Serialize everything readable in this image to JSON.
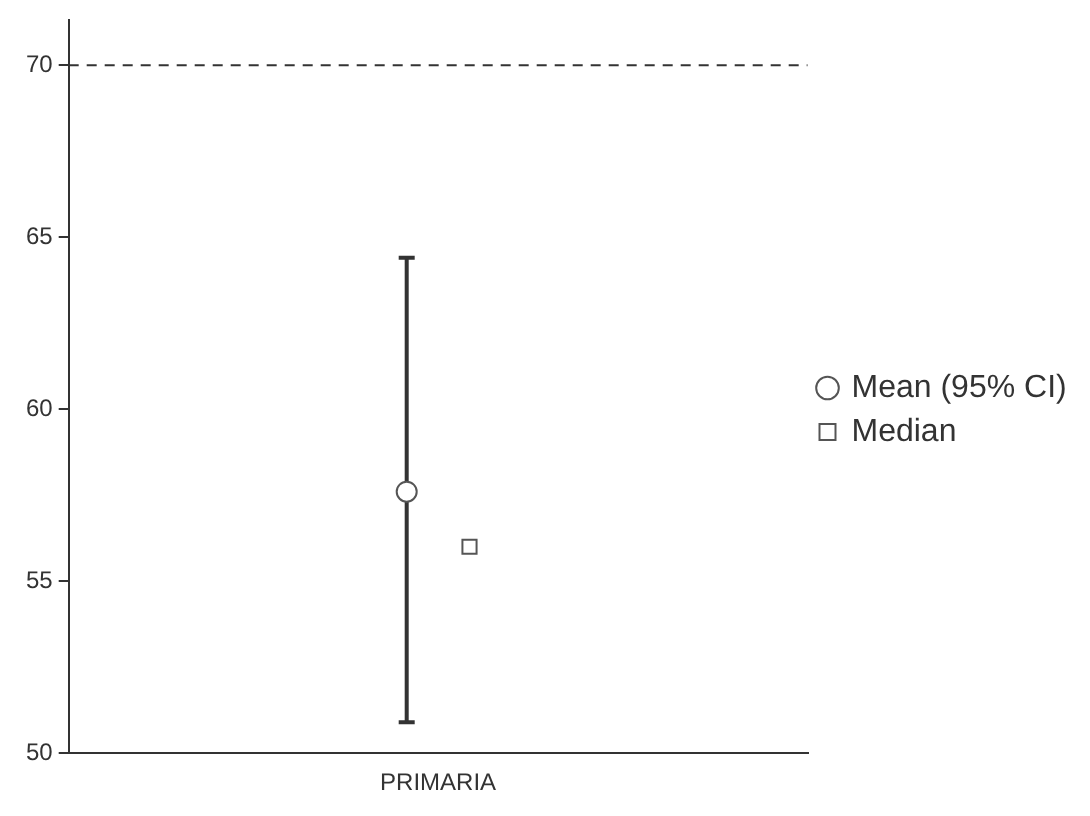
{
  "chart_data": {
    "type": "scatter",
    "categories": [
      "PRIMARIA"
    ],
    "series": [
      {
        "name": "Mean (95% CI)",
        "color": "#555555",
        "marker": "circle",
        "values": [
          57.6
        ],
        "errors": [
          [
            50.9,
            64.4
          ]
        ]
      },
      {
        "name": "Median",
        "color": "#555555",
        "marker": "square",
        "values": [
          56.0
        ]
      }
    ],
    "ylim": [
      50,
      71.3
    ],
    "yticks": [
      50,
      55,
      60,
      65,
      70
    ],
    "ref_lines": [
      {
        "axis": "y",
        "value": 70,
        "line_style": "dashed",
        "color": "#333333"
      }
    ],
    "grid": false,
    "legend": "right"
  }
}
